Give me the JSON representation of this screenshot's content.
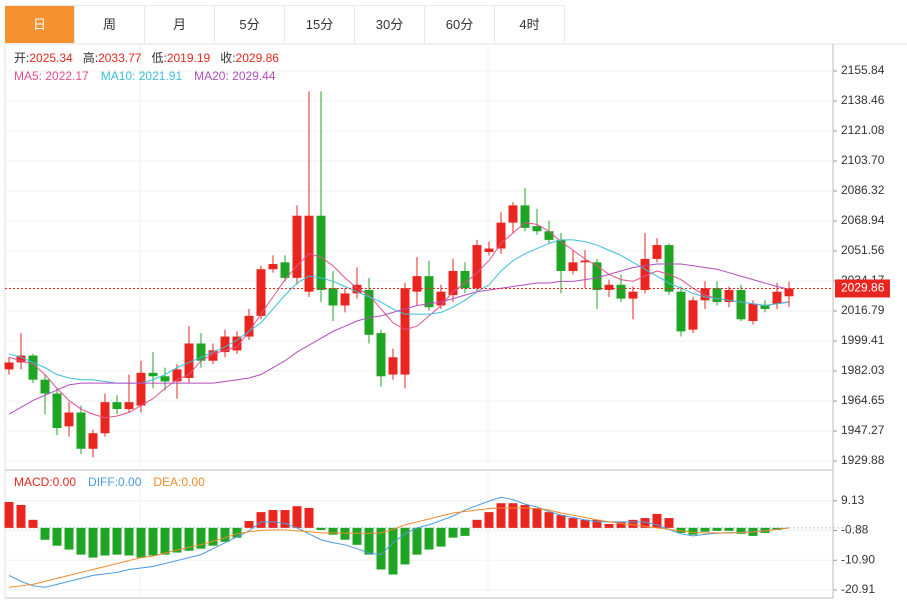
{
  "tabs": [
    "日",
    "周",
    "月",
    "5分",
    "15分",
    "30分",
    "60分",
    "4时"
  ],
  "active_tab": 0,
  "info_labels": [
    "开:",
    "高:",
    "低:",
    "收:"
  ],
  "chart_data": [
    {
      "type": "candlestick",
      "up_color": "#e8261f",
      "down_color": "#1fa524",
      "open": [
        1983,
        1987,
        1991,
        1977,
        1969,
        1950,
        1958,
        1937,
        1946,
        1964,
        1960,
        1962,
        1981,
        1979,
        1976,
        1978,
        1998,
        1988,
        1993,
        1994,
        2002,
        2014,
        2041,
        2045,
        2036,
        2028,
        2072,
        2030,
        2020,
        2027,
        2029,
        2004,
        1980,
        1980,
        2028,
        2037,
        2020,
        2026,
        2040,
        2030,
        2051,
        2053,
        2068,
        2078,
        2066,
        2063,
        2058,
        2040,
        2045,
        2045,
        2029,
        2032,
        2024,
        2029,
        2047,
        2055,
        2028,
        2006,
        2023,
        2030,
        2022,
        2029,
        2011,
        2020,
        2021,
        2025.34
      ],
      "high": [
        1990,
        2004,
        1992,
        1980,
        1972,
        1964,
        1962,
        1948,
        1969,
        1968,
        1980,
        1988,
        1993,
        1984,
        1986,
        2008,
        2004,
        1998,
        2006,
        2005,
        2018,
        2043,
        2049,
        2049,
        2078,
        2144,
        2144,
        2040,
        2030,
        2042,
        2036,
        2006,
        1995,
        2033,
        2048,
        2046,
        2032,
        2047,
        2045,
        2058,
        2057,
        2074,
        2080,
        2088,
        2076,
        2069,
        2062,
        2052,
        2052,
        2047,
        2035,
        2038,
        2031,
        2062,
        2059,
        2056,
        2031,
        2025,
        2034,
        2034,
        2031,
        2032,
        2023,
        2023,
        2033,
        2033.77
      ],
      "low": [
        1980,
        1983,
        1975,
        1957,
        1945,
        1944,
        1934,
        1932,
        1944,
        1957,
        1958,
        1958,
        1972,
        1971,
        1966,
        1975,
        1984,
        1986,
        1990,
        1992,
        2000,
        2012,
        2039,
        2034,
        2032,
        2025,
        2022,
        2011,
        2016,
        2024,
        1998,
        1973,
        1977,
        1972,
        2020,
        2017,
        2018,
        2022,
        2027,
        2028,
        2049,
        2050,
        2062,
        2063,
        2061,
        2056,
        2027,
        2038,
        2030,
        2018,
        2025,
        2022,
        2012,
        2027,
        2045,
        2026,
        2002,
        2004,
        2018,
        2020,
        2019,
        2011,
        2009,
        2016,
        2018,
        2019.19
      ],
      "close": [
        1987,
        1991,
        1977,
        1969,
        1949,
        1958,
        1937,
        1946,
        1964,
        1960,
        1964,
        1981,
        1979,
        1976,
        1983,
        1998,
        1988,
        1994,
        2002,
        2002,
        2014,
        2041,
        2044,
        2036,
        2072,
        2072,
        2029,
        2020,
        2027,
        2032,
        2003,
        1979,
        1990,
        2030,
        2037,
        2019,
        2028,
        2040,
        2030,
        2055,
        2053,
        2068,
        2078,
        2065,
        2063,
        2058,
        2040,
        2045,
        2046,
        2029,
        2032,
        2024,
        2028,
        2047,
        2055,
        2028,
        2005,
        2023,
        2030,
        2022,
        2029,
        2012,
        2021,
        2018,
        2028,
        2029.86
      ],
      "lines": [
        {
          "color": "#e4508e",
          "values": [
            1990,
            1988,
            1986,
            1980,
            1972,
            1965,
            1960,
            1957,
            1955,
            1956,
            1958,
            1962,
            1966,
            1972,
            1977,
            1980,
            1988,
            1992,
            1994,
            1996,
            2005,
            2015,
            2025,
            2035,
            2043,
            2050,
            2048,
            2043,
            2036,
            2030,
            2026,
            2018,
            2010,
            2006,
            2008,
            2014,
            2020,
            2028,
            2033,
            2039,
            2046,
            2056,
            2062,
            2068,
            2067,
            2063,
            2057,
            2052,
            2047,
            2043,
            2038,
            2035,
            2034,
            2037,
            2040,
            2038,
            2035,
            2030,
            2026,
            2024,
            2023,
            2022,
            2021,
            2020,
            2021,
            2022.17
          ]
        },
        {
          "color": "#3cbfd8",
          "values": [
            1992,
            1990,
            1987,
            1984,
            1980,
            1978,
            1977,
            1977,
            1976,
            1975,
            1975,
            1975,
            1977,
            1980,
            1984,
            1987,
            1990,
            1993,
            1996,
            2000,
            2005,
            2010,
            2018,
            2026,
            2033,
            2037,
            2036,
            2034,
            2031,
            2028,
            2025,
            2022,
            2018,
            2015,
            2015,
            2015,
            2016,
            2019,
            2023,
            2028,
            2032,
            2040,
            2046,
            2050,
            2053,
            2056,
            2058,
            2058,
            2057,
            2055,
            2052,
            2049,
            2045,
            2041,
            2037,
            2033,
            2030,
            2027,
            2025,
            2024,
            2023,
            2022,
            2021,
            2020,
            2021,
            2021.91
          ]
        },
        {
          "color": "#b24ebd",
          "values": [
            1957,
            1961,
            1965,
            1968,
            1971,
            1974,
            1975,
            1975,
            1975,
            1975,
            1975,
            1975,
            1975,
            1975,
            1975,
            1975,
            1975,
            1975,
            1976,
            1977,
            1978,
            1980,
            1984,
            1988,
            1993,
            1997,
            2001,
            2005,
            2008,
            2011,
            2013,
            2014,
            2016,
            2018,
            2020,
            2021,
            2022,
            2024,
            2026,
            2028,
            2029,
            2030,
            2031,
            2032,
            2033,
            2033,
            2034,
            2034,
            2035,
            2036,
            2038,
            2040,
            2042,
            2043,
            2044,
            2044,
            2044,
            2043,
            2042,
            2041,
            2039,
            2037,
            2035,
            2033,
            2031,
            2029.44
          ]
        }
      ],
      "legend_labels": [
        "MA5: 2022.17",
        "MA10: 2021.91",
        "MA20: 2029.44"
      ],
      "ylim": [
        1924.7,
        2170.9
      ],
      "yticks": [
        2155.84,
        2138.46,
        2121.08,
        {
          "value": 2103.7,
          "label": "2103.70"
        },
        2086.32,
        2068.94,
        2051.56,
        2034.17,
        2016.79,
        1999.41,
        1982.03,
        1964.65,
        1947.27,
        1929.88
      ],
      "grid": true
    },
    {
      "type": "macd",
      "up_color": "#e8261f",
      "down_color": "#1fa524",
      "values": [
        8.7,
        7.7,
        2.7,
        -4,
        -6,
        -7.3,
        -9,
        -10,
        -9.3,
        -9,
        -9.3,
        -10,
        -9.3,
        -9,
        -8.3,
        -7.7,
        -7,
        -6,
        -4.7,
        -3.3,
        2.3,
        5.3,
        6,
        6,
        7.3,
        6.7,
        -0.7,
        -2.3,
        -4,
        -5.7,
        -9,
        -14,
        -15.7,
        -12.3,
        -9,
        -7.3,
        -6.3,
        -3.3,
        -2.7,
        2.7,
        5.3,
        8.3,
        8.3,
        7.7,
        6.7,
        5.3,
        4.3,
        3.3,
        2.7,
        2.7,
        1.3,
        2,
        2.7,
        3.3,
        4.7,
        3.3,
        -1.7,
        -2.3,
        -1.3,
        -1,
        -1,
        -2,
        -2.7,
        -1.7,
        -0.7,
        0
      ],
      "lines": [
        {
          "color": "#4a9be2",
          "values": [
            -16,
            -18,
            -19.5,
            -20,
            -19,
            -18,
            -17,
            -16,
            -15.5,
            -15,
            -14,
            -13.5,
            -13,
            -12,
            -11,
            -10,
            -9,
            -7,
            -5,
            -3,
            -1,
            2,
            2,
            1.5,
            0,
            -2,
            -4,
            -5,
            -5.7,
            -7,
            -8.5,
            -9,
            -5,
            -2,
            0,
            1,
            2.5,
            4,
            6,
            7.5,
            9,
            10.3,
            9.5,
            8,
            7,
            5.5,
            4.3,
            3.5,
            2.7,
            2,
            2,
            2,
            2,
            2,
            1,
            -0.5,
            -2,
            -2.7,
            -2.2,
            -1.8,
            -1.6,
            -1.5,
            -1.3,
            -1,
            -0.5,
            0
          ]
        },
        {
          "color": "#f08a2c",
          "values": [
            -20,
            -19.5,
            -19,
            -18,
            -17,
            -16,
            -15,
            -14,
            -13,
            -12,
            -11,
            -10,
            -9.5,
            -8.5,
            -7.5,
            -6.5,
            -5.7,
            -4.5,
            -3.3,
            -2,
            -1.3,
            -0.9,
            -0.7,
            -0.7,
            -1,
            -1.3,
            -1.7,
            -1.7,
            -1.8,
            -1.8,
            -1.8,
            -1.7,
            -0.5,
            1,
            2,
            3,
            4,
            5,
            5.5,
            6,
            6.5,
            6.7,
            6.7,
            6.7,
            6.5,
            6,
            5,
            4.3,
            3.5,
            2.7,
            2,
            1.5,
            1,
            0.5,
            0,
            -0.5,
            -1,
            -1.5,
            -1.7,
            -1.7,
            -1.7,
            -1.6,
            -1.4,
            -1,
            -0.5,
            0
          ]
        }
      ],
      "legend": [
        {
          "text": "MACD:0.00",
          "color": "#e8261f"
        },
        {
          "text": "DIFF:0.00",
          "color": "#4a9be2"
        },
        {
          "text": "DEA:0.00",
          "color": "#f08a2c"
        }
      ],
      "ylim": [
        -23.6,
        18.8
      ],
      "yticks": [
        9.13,
        -0.88,
        {
          "value": -10.9,
          "label": "-10.90"
        },
        -20.91
      ],
      "grid": true
    }
  ]
}
